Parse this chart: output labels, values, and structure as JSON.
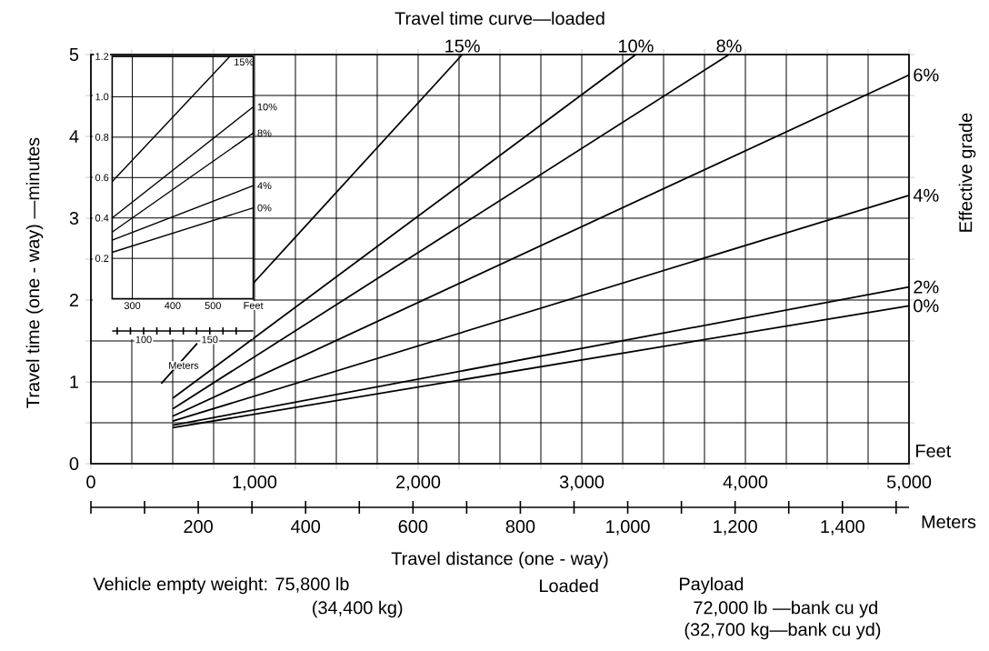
{
  "chart_data": [
    {
      "type": "line",
      "title": "Travel time curve—loaded",
      "xlabel": "Travel distance  (one - way)",
      "ylabel": "Travel time (one - way) —minutes",
      "x2label": "Meters",
      "legend_title": "Effective grade",
      "xlim": [
        0,
        5000
      ],
      "xticks": [
        0,
        {
          "value": 250,
          "label": null
        },
        {
          "value": 500,
          "label": null
        },
        {
          "value": 750,
          "label": null
        },
        {
          "value": 1000,
          "label": "1,000"
        },
        {
          "value": 1250,
          "label": null
        },
        {
          "value": 1500,
          "label": null
        },
        {
          "value": 1750,
          "label": null
        },
        {
          "value": 2000,
          "label": "2,000"
        },
        {
          "value": 2250,
          "label": null
        },
        {
          "value": 2500,
          "label": null
        },
        {
          "value": 2750,
          "label": null
        },
        {
          "value": 3000,
          "label": "3,000"
        },
        {
          "value": 3250,
          "label": null
        },
        {
          "value": 3500,
          "label": null
        },
        {
          "value": 3750,
          "label": null
        },
        {
          "value": 4000,
          "label": "4,000"
        },
        {
          "value": 4250,
          "label": null
        },
        {
          "value": 4500,
          "label": null
        },
        {
          "value": 4750,
          "label": null
        },
        {
          "value": 5000,
          "label": "5,000"
        }
      ],
      "ylim": [
        0,
        5
      ],
      "yticks": [
        0,
        {
          "value": 0.5,
          "label": null
        },
        1,
        {
          "value": 1.5,
          "label": null
        },
        2,
        {
          "value": 2.5,
          "label": null
        },
        3,
        {
          "value": 3.5,
          "label": null
        },
        4,
        {
          "value": 4.5,
          "label": null
        },
        5
      ],
      "x2lim": [
        0,
        1524
      ],
      "x2ticks": [
        200,
        400,
        600,
        800,
        {
          "value": 1000,
          "label": "1,000"
        },
        {
          "value": 1200,
          "label": "1,200"
        },
        {
          "value": 1400,
          "label": "1,400"
        }
      ],
      "grid": true,
      "marker": "none",
      "annotations": [
        "Feet",
        "Vehicle empty weight: 75,800 lb",
        "(34,400 kg)",
        "Loaded",
        "Payload",
        "72,000 lb —bank cu yd",
        "(32,700 kg—bank cu yd)"
      ],
      "series": [
        {
          "name": "15%",
          "color": "#000000",
          "x": [
            430,
            650,
            800,
            990,
            2270
          ],
          "values": [
            0.98,
            1.47,
            null,
            2.2,
            5.0
          ]
        },
        {
          "name": "10%",
          "color": "#000000",
          "x": [
            500,
            3330
          ],
          "values": [
            0.8,
            5.0
          ]
        },
        {
          "name": "8%",
          "color": "#000000",
          "x": [
            500,
            3900
          ],
          "values": [
            0.67,
            5.0
          ]
        },
        {
          "name": "6%",
          "color": "#000000",
          "x": [
            500,
            5000
          ],
          "values": [
            0.58,
            4.75
          ]
        },
        {
          "name": "4%",
          "color": "#000000",
          "x": [
            500,
            5000
          ],
          "values": [
            0.52,
            3.28
          ]
        },
        {
          "name": "2%",
          "color": "#000000",
          "x": [
            500,
            5000
          ],
          "values": [
            0.47,
            2.16
          ]
        },
        {
          "name": "0%",
          "color": "#000000",
          "x": [
            500,
            5000
          ],
          "values": [
            0.44,
            1.93
          ]
        }
      ]
    },
    {
      "type": "line",
      "x2label": "Meters",
      "xlim": [
        250,
        600
      ],
      "xticks": [
        300,
        400,
        500,
        {
          "value": 600,
          "label": "Feet"
        }
      ],
      "ylim": [
        0,
        1.2
      ],
      "yticks": [
        0.2,
        0.4,
        0.6,
        0.8,
        {
          "value": 1.0,
          "label": "1.0"
        },
        1.2
      ],
      "x2lim": [
        76.2,
        182.9
      ],
      "x2ticks": [
        100,
        150
      ],
      "grid": true,
      "marker": "none",
      "series": [
        {
          "name": "15%",
          "color": "#000000",
          "x": [
            250,
            542
          ],
          "values": [
            0.58,
            1.2
          ]
        },
        {
          "name": "10%",
          "color": "#000000",
          "x": [
            250,
            600
          ],
          "values": [
            0.4,
            0.95
          ]
        },
        {
          "name": "8%",
          "color": "#000000",
          "x": [
            250,
            600
          ],
          "values": [
            0.33,
            0.82
          ]
        },
        {
          "name": "4%",
          "color": "#000000",
          "x": [
            250,
            600
          ],
          "values": [
            0.29,
            0.56
          ]
        },
        {
          "name": "0%",
          "color": "#000000",
          "x": [
            250,
            600
          ],
          "values": [
            0.23,
            0.45
          ]
        }
      ]
    }
  ]
}
